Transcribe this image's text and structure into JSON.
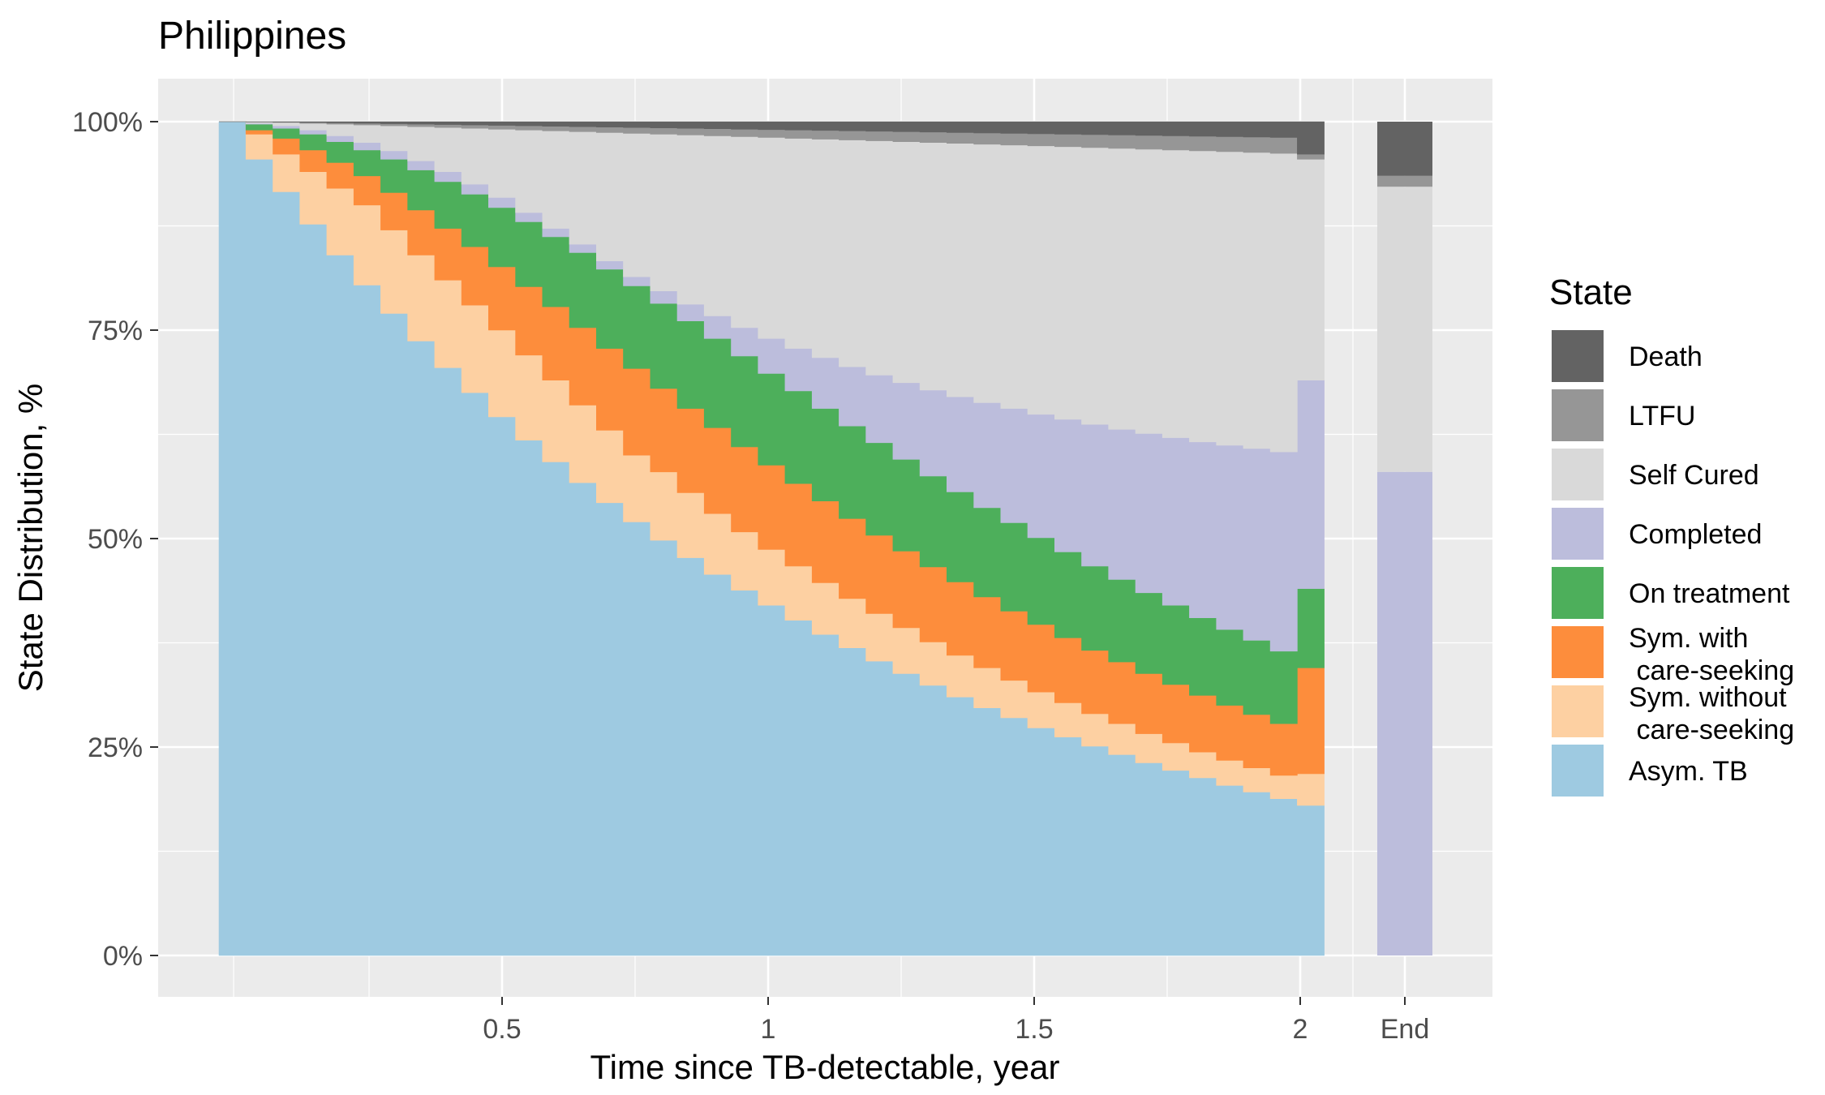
{
  "chart_data": {
    "type": "area",
    "variant": "stacked-percent-step",
    "title": "Philippines",
    "xlabel": "Time since TB-detectable, year",
    "ylabel": "State Distribution, %",
    "x_ticks": [
      "0.5",
      "1",
      "1.5",
      "2",
      "End"
    ],
    "y_ticks": [
      "0%",
      "25%",
      "50%",
      "75%",
      "100%"
    ],
    "ylim": [
      0,
      1
    ],
    "xlim": [
      0,
      2
    ],
    "grid": true,
    "legend": {
      "title": "State",
      "position": "right",
      "entries": [
        {
          "label": "Death",
          "color": "#636363"
        },
        {
          "label": "LTFU",
          "color": "#969696"
        },
        {
          "label": "Self Cured",
          "color": "#d9d9d9"
        },
        {
          "label": "Completed",
          "color": "#bcbddc"
        },
        {
          "label": "On treatment",
          "color": "#4daf5b"
        },
        {
          "label": "Sym. with\n care-seeking",
          "color": "#fd8d3c"
        },
        {
          "label": "Sym. without\n care-seeking",
          "color": "#fdd0a2"
        },
        {
          "label": "Asym. TB",
          "color": "#9ecae1"
        }
      ]
    },
    "stack_order_bottom_to_top": [
      "Asym. TB",
      "Sym. without\n care-seeking",
      "Sym. with\n care-seeking",
      "On treatment",
      "Completed",
      "Self Cured",
      "LTFU",
      "Death"
    ],
    "time_step_years": 0.05,
    "cumulative_boundaries": {
      "x": [
        0,
        0.05,
        0.1,
        0.15,
        0.2,
        0.25,
        0.3,
        0.35,
        0.4,
        0.45,
        0.5,
        0.55,
        0.6,
        0.65,
        0.7,
        0.75,
        0.8,
        0.85,
        0.9,
        0.95,
        1.0,
        1.05,
        1.1,
        1.15,
        1.2,
        1.25,
        1.3,
        1.35,
        1.4,
        1.45,
        1.5,
        1.55,
        1.6,
        1.65,
        1.7,
        1.75,
        1.8,
        1.85,
        1.9,
        1.95,
        2.0
      ],
      "asym": [
        1.0,
        0.955,
        0.916,
        0.877,
        0.84,
        0.804,
        0.77,
        0.737,
        0.705,
        0.675,
        0.646,
        0.618,
        0.592,
        0.567,
        0.543,
        0.52,
        0.498,
        0.477,
        0.457,
        0.438,
        0.42,
        0.402,
        0.385,
        0.369,
        0.353,
        0.338,
        0.324,
        0.31,
        0.297,
        0.285,
        0.273,
        0.262,
        0.251,
        0.241,
        0.231,
        0.222,
        0.213,
        0.204,
        0.196,
        0.188,
        0.18
      ],
      "sym_no_care": [
        1.0,
        0.985,
        0.961,
        0.94,
        0.92,
        0.9,
        0.87,
        0.84,
        0.81,
        0.78,
        0.75,
        0.72,
        0.69,
        0.66,
        0.63,
        0.6,
        0.58,
        0.555,
        0.53,
        0.508,
        0.487,
        0.467,
        0.447,
        0.428,
        0.41,
        0.393,
        0.376,
        0.36,
        0.345,
        0.33,
        0.316,
        0.303,
        0.29,
        0.278,
        0.266,
        0.255,
        0.244,
        0.234,
        0.225,
        0.216,
        0.218
      ],
      "sym_care": [
        1.0,
        0.99,
        0.98,
        0.966,
        0.951,
        0.935,
        0.915,
        0.894,
        0.872,
        0.85,
        0.826,
        0.802,
        0.778,
        0.753,
        0.728,
        0.704,
        0.68,
        0.656,
        0.633,
        0.61,
        0.588,
        0.566,
        0.545,
        0.524,
        0.504,
        0.485,
        0.466,
        0.448,
        0.43,
        0.413,
        0.397,
        0.381,
        0.366,
        0.352,
        0.338,
        0.325,
        0.312,
        0.3,
        0.289,
        0.278,
        0.345
      ],
      "on_treatment": [
        1.0,
        0.997,
        0.992,
        0.985,
        0.976,
        0.966,
        0.955,
        0.942,
        0.928,
        0.913,
        0.897,
        0.88,
        0.862,
        0.843,
        0.823,
        0.803,
        0.782,
        0.761,
        0.74,
        0.719,
        0.698,
        0.677,
        0.656,
        0.635,
        0.615,
        0.595,
        0.575,
        0.556,
        0.537,
        0.519,
        0.501,
        0.484,
        0.467,
        0.451,
        0.435,
        0.42,
        0.405,
        0.391,
        0.378,
        0.365,
        0.44
      ],
      "completed": [
        1.0,
        0.998,
        0.995,
        0.99,
        0.983,
        0.975,
        0.965,
        0.953,
        0.94,
        0.925,
        0.909,
        0.891,
        0.872,
        0.853,
        0.833,
        0.814,
        0.797,
        0.781,
        0.767,
        0.753,
        0.74,
        0.728,
        0.717,
        0.706,
        0.696,
        0.687,
        0.678,
        0.67,
        0.663,
        0.656,
        0.649,
        0.643,
        0.637,
        0.631,
        0.626,
        0.621,
        0.616,
        0.612,
        0.608,
        0.604,
        0.69
      ],
      "self_cured": [
        1.0,
        0.9995,
        0.999,
        0.998,
        0.997,
        0.996,
        0.995,
        0.994,
        0.993,
        0.992,
        0.991,
        0.99,
        0.989,
        0.988,
        0.987,
        0.986,
        0.985,
        0.984,
        0.983,
        0.982,
        0.981,
        0.98,
        0.979,
        0.978,
        0.977,
        0.976,
        0.975,
        0.974,
        0.973,
        0.972,
        0.971,
        0.97,
        0.969,
        0.968,
        0.967,
        0.966,
        0.965,
        0.964,
        0.963,
        0.962,
        0.955
      ],
      "ltfu": [
        1.0,
        0.9997,
        0.9994,
        0.999,
        0.9985,
        0.998,
        0.9975,
        0.997,
        0.9965,
        0.996,
        0.9955,
        0.995,
        0.9945,
        0.994,
        0.9935,
        0.993,
        0.9925,
        0.992,
        0.9915,
        0.991,
        0.9905,
        0.99,
        0.9895,
        0.989,
        0.9885,
        0.988,
        0.9875,
        0.987,
        0.9865,
        0.986,
        0.9855,
        0.985,
        0.9845,
        0.984,
        0.9835,
        0.983,
        0.9825,
        0.982,
        0.9815,
        0.981,
        0.961
      ]
    },
    "end_bar": [
      {
        "state": "Completed",
        "value": 0.58
      },
      {
        "state": "Self Cured",
        "value": 0.342
      },
      {
        "state": "LTFU",
        "value": 0.013
      },
      {
        "state": "Death",
        "value": 0.065
      }
    ]
  }
}
